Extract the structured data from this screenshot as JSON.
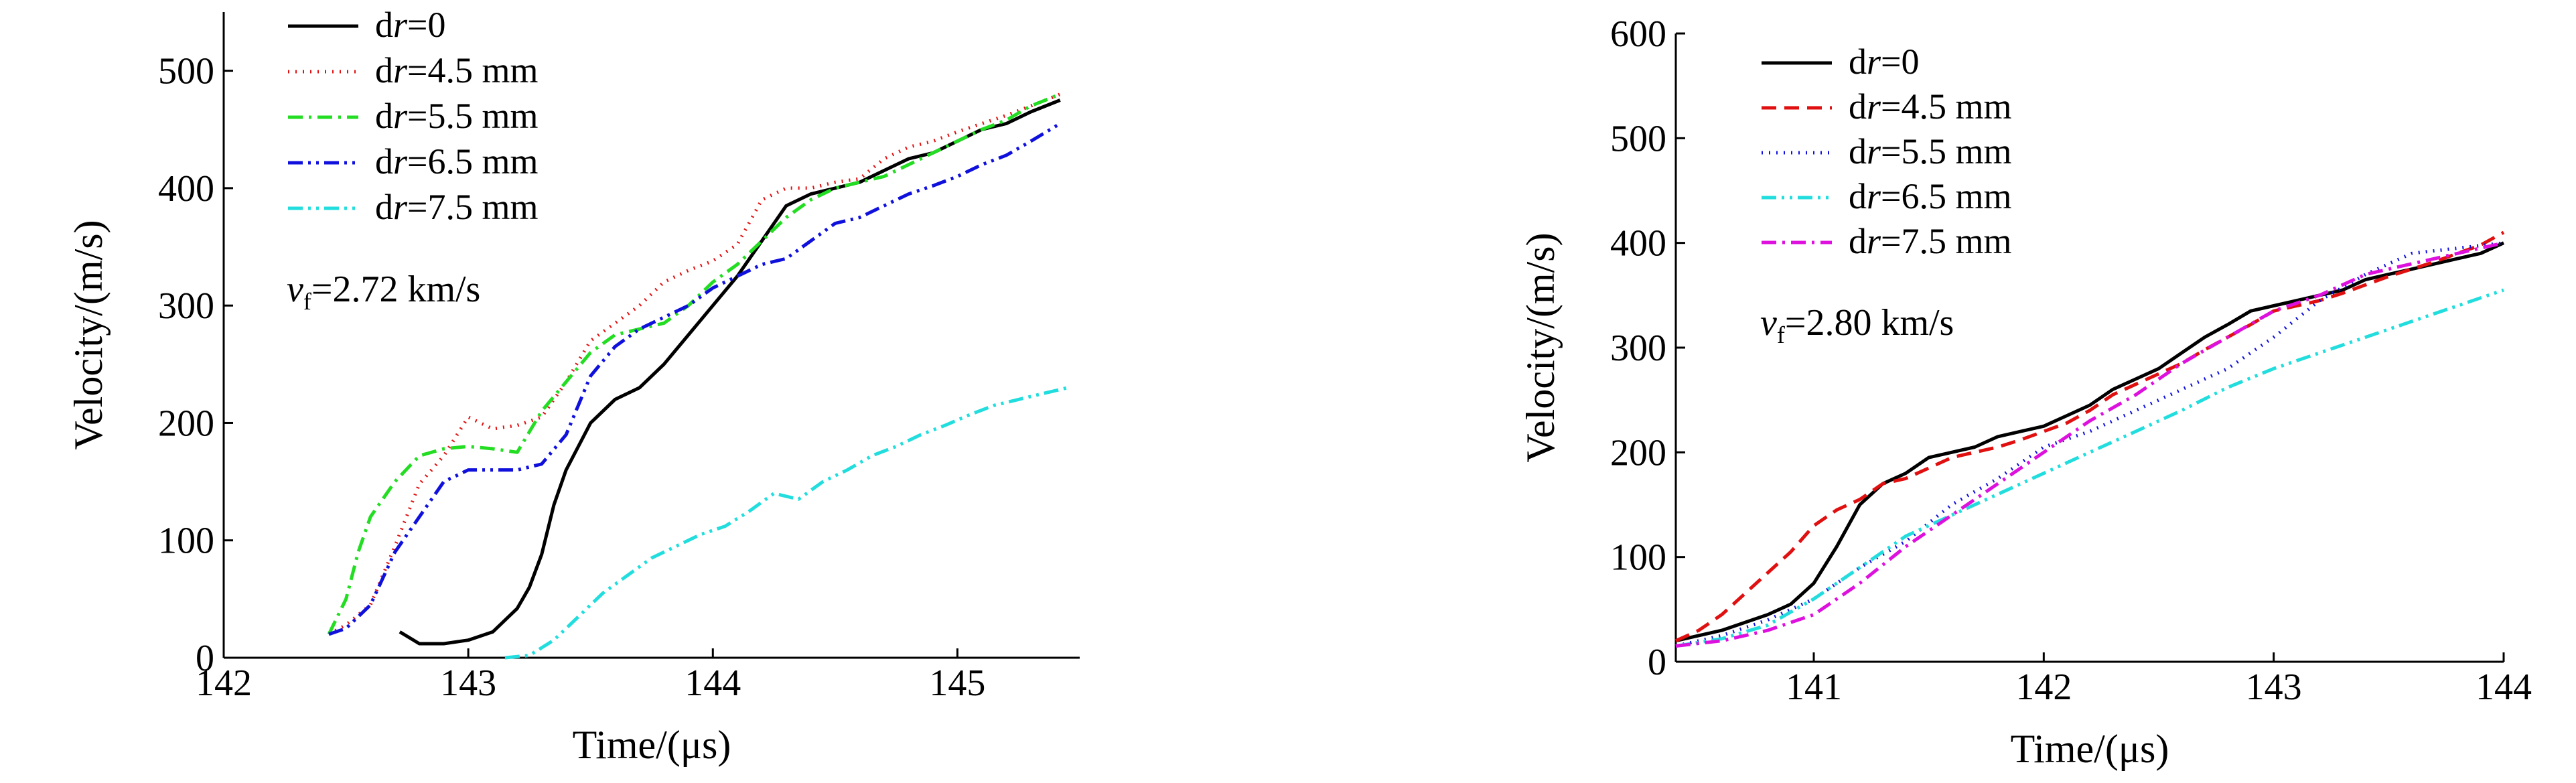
{
  "colors": {
    "black": "#000000",
    "red": "#e01010",
    "green": "#22dd22",
    "blue": "#1010dd",
    "cyan": "#22dddd",
    "magenta": "#dd10dd"
  },
  "chart_data": [
    {
      "type": "line",
      "title": "",
      "xlabel": "Time/(μs)",
      "ylabel": "Velocity/(m/s)",
      "xlim": [
        142,
        145.5
      ],
      "ylim": [
        0,
        550
      ],
      "xticks": [
        142,
        143,
        144,
        145
      ],
      "yticks": [
        0,
        100,
        200,
        300,
        400,
        500
      ],
      "grid": false,
      "legend": "top-left",
      "annotation": {
        "symbol": "v",
        "subscript": "f",
        "text": "=2.72 km/s"
      },
      "series": [
        {
          "name": "d",
          "name_var": "r",
          "name_rest": "=0",
          "color": "#000000",
          "dash": "solid",
          "x": [
            142.72,
            142.8,
            142.9,
            143.0,
            143.1,
            143.2,
            143.25,
            143.3,
            143.35,
            143.4,
            143.45,
            143.5,
            143.6,
            143.7,
            143.8,
            143.9,
            144.0,
            144.1,
            144.2,
            144.3,
            144.4,
            144.5,
            144.6,
            144.7,
            144.8,
            144.9,
            145.0,
            145.1,
            145.2,
            145.3,
            145.42
          ],
          "y": [
            22,
            12,
            12,
            15,
            22,
            42,
            60,
            88,
            130,
            160,
            180,
            200,
            220,
            230,
            250,
            275,
            300,
            325,
            355,
            385,
            395,
            400,
            405,
            415,
            425,
            430,
            440,
            450,
            455,
            465,
            475
          ]
        },
        {
          "name": "d",
          "name_var": "r",
          "name_rest": "=4.5 mm",
          "color": "#e01010",
          "dash": "dot",
          "x": [
            142.43,
            142.5,
            142.6,
            142.7,
            142.8,
            142.9,
            143.0,
            143.1,
            143.2,
            143.3,
            143.4,
            143.5,
            143.6,
            143.7,
            143.8,
            143.9,
            144.0,
            144.1,
            144.2,
            144.3,
            144.4,
            144.5,
            144.6,
            144.7,
            144.8,
            144.9,
            145.0,
            145.1,
            145.2,
            145.3,
            145.42
          ],
          "y": [
            20,
            28,
            45,
            95,
            148,
            172,
            205,
            195,
            198,
            205,
            235,
            270,
            285,
            300,
            320,
            330,
            338,
            352,
            390,
            400,
            400,
            405,
            408,
            425,
            435,
            440,
            448,
            455,
            462,
            470,
            480
          ]
        },
        {
          "name": "d",
          "name_var": "r",
          "name_rest": "=5.5 mm",
          "color": "#22dd22",
          "dash": "dashdot",
          "x": [
            142.43,
            142.5,
            142.55,
            142.6,
            142.65,
            142.7,
            142.8,
            142.9,
            143.0,
            143.1,
            143.2,
            143.3,
            143.4,
            143.5,
            143.6,
            143.7,
            143.8,
            143.9,
            144.0,
            144.1,
            144.2,
            144.3,
            144.4,
            144.5,
            144.6,
            144.7,
            144.8,
            144.9,
            145.0,
            145.1,
            145.2,
            145.3,
            145.42
          ],
          "y": [
            20,
            50,
            90,
            120,
            135,
            150,
            172,
            178,
            180,
            178,
            175,
            210,
            235,
            260,
            275,
            280,
            285,
            300,
            320,
            335,
            355,
            375,
            390,
            400,
            405,
            410,
            420,
            430,
            440,
            450,
            458,
            470,
            480
          ]
        },
        {
          "name": "d",
          "name_var": "r",
          "name_rest": "=6.5 mm",
          "color": "#1010dd",
          "dash": "dashdotdot",
          "x": [
            142.43,
            142.5,
            142.6,
            142.7,
            142.8,
            142.9,
            143.0,
            143.1,
            143.2,
            143.3,
            143.4,
            143.5,
            143.6,
            143.7,
            143.8,
            143.9,
            144.0,
            144.1,
            144.2,
            144.3,
            144.4,
            144.5,
            144.6,
            144.7,
            144.8,
            144.9,
            145.0,
            145.1,
            145.2,
            145.3,
            145.42
          ],
          "y": [
            20,
            25,
            45,
            90,
            120,
            150,
            160,
            160,
            160,
            165,
            190,
            240,
            265,
            280,
            290,
            300,
            315,
            325,
            335,
            340,
            355,
            370,
            375,
            385,
            395,
            402,
            410,
            420,
            428,
            440,
            455
          ]
        },
        {
          "name": "d",
          "name_var": "r",
          "name_rest": "=7.5 mm",
          "color": "#22dddd",
          "dash": "dashdotdot",
          "x": [
            143.15,
            143.25,
            143.35,
            143.45,
            143.55,
            143.65,
            143.75,
            143.85,
            143.95,
            144.05,
            144.15,
            144.25,
            144.35,
            144.45,
            144.55,
            144.65,
            144.75,
            144.85,
            144.95,
            145.05,
            145.15,
            145.25,
            145.35,
            145.45
          ],
          "y": [
            0,
            2,
            15,
            35,
            55,
            70,
            85,
            95,
            105,
            112,
            125,
            140,
            135,
            150,
            160,
            172,
            180,
            190,
            198,
            207,
            215,
            220,
            225,
            230
          ]
        }
      ]
    },
    {
      "type": "line",
      "title": "",
      "xlabel": "Time/(μs)",
      "ylabel": "Velocity/(m/s)",
      "xlim": [
        140.4,
        144
      ],
      "ylim": [
        0,
        600
      ],
      "xticks": [
        141,
        142,
        143,
        144
      ],
      "yticks": [
        0,
        100,
        200,
        300,
        400,
        500,
        600
      ],
      "grid": false,
      "legend": "top-left",
      "annotation": {
        "symbol": "v",
        "subscript": "f",
        "text": "=2.80 km/s"
      },
      "series": [
        {
          "name": "d",
          "name_var": "r",
          "name_rest": "=0",
          "color": "#000000",
          "dash": "solid",
          "x": [
            140.4,
            140.6,
            140.8,
            140.9,
            141.0,
            141.1,
            141.2,
            141.3,
            141.4,
            141.5,
            141.6,
            141.7,
            141.8,
            141.9,
            142.0,
            142.1,
            142.2,
            142.3,
            142.4,
            142.5,
            142.6,
            142.7,
            142.8,
            142.9,
            143.0,
            143.1,
            143.2,
            143.3,
            143.4,
            143.5,
            143.6,
            143.7,
            143.8,
            143.9,
            144.0
          ],
          "y": [
            20,
            30,
            45,
            55,
            75,
            110,
            150,
            170,
            180,
            195,
            200,
            205,
            215,
            220,
            225,
            235,
            245,
            260,
            270,
            280,
            295,
            310,
            322,
            335,
            340,
            345,
            350,
            355,
            365,
            370,
            375,
            380,
            385,
            390,
            400
          ]
        },
        {
          "name": "d",
          "name_var": "r",
          "name_rest": "=4.5 mm",
          "color": "#e01010",
          "dash": "dash",
          "x": [
            140.4,
            140.5,
            140.6,
            140.7,
            140.8,
            140.9,
            141.0,
            141.1,
            141.2,
            141.3,
            141.4,
            141.5,
            141.6,
            141.7,
            141.8,
            141.9,
            142.0,
            142.1,
            142.2,
            142.3,
            142.4,
            142.5,
            142.6,
            142.7,
            142.8,
            142.9,
            143.0,
            143.1,
            143.2,
            143.3,
            143.4,
            143.5,
            143.6,
            143.7,
            143.8,
            143.9,
            144.0
          ],
          "y": [
            20,
            30,
            45,
            65,
            85,
            105,
            130,
            145,
            155,
            170,
            175,
            185,
            195,
            200,
            205,
            212,
            220,
            228,
            240,
            255,
            265,
            275,
            285,
            298,
            310,
            322,
            335,
            340,
            345,
            352,
            360,
            368,
            375,
            382,
            390,
            398,
            410
          ]
        },
        {
          "name": "d",
          "name_var": "r",
          "name_rest": "=5.5 mm",
          "color": "#1010dd",
          "dash": "dot",
          "x": [
            140.4,
            140.6,
            140.8,
            141.0,
            141.2,
            141.4,
            141.6,
            141.8,
            142.0,
            142.2,
            142.4,
            142.6,
            142.8,
            143.0,
            143.2,
            143.4,
            143.6,
            143.8,
            144.0
          ],
          "y": [
            15,
            25,
            40,
            60,
            90,
            115,
            150,
            175,
            205,
            220,
            240,
            260,
            280,
            310,
            345,
            370,
            390,
            395,
            400
          ]
        },
        {
          "name": "d",
          "name_var": "r",
          "name_rest": "=6.5 mm",
          "color": "#22dddd",
          "dash": "dashdotdot",
          "x": [
            140.4,
            140.6,
            140.8,
            141.0,
            141.2,
            141.4,
            141.6,
            141.8,
            142.0,
            142.2,
            142.4,
            142.6,
            142.8,
            143.0,
            143.2,
            143.4,
            143.6,
            143.8,
            144.0
          ],
          "y": [
            15,
            22,
            35,
            60,
            90,
            120,
            140,
            160,
            180,
            200,
            220,
            240,
            262,
            280,
            295,
            310,
            325,
            340,
            355
          ]
        },
        {
          "name": "d",
          "name_var": "r",
          "name_rest": "=7.5 mm",
          "color": "#dd10dd",
          "dash": "dashdot",
          "x": [
            140.4,
            140.6,
            140.8,
            141.0,
            141.2,
            141.4,
            141.6,
            141.8,
            142.0,
            142.2,
            142.4,
            142.6,
            142.8,
            143.0,
            143.2,
            143.4,
            143.6,
            143.8,
            144.0
          ],
          "y": [
            15,
            20,
            30,
            45,
            75,
            110,
            140,
            170,
            200,
            230,
            255,
            285,
            310,
            335,
            350,
            370,
            380,
            390,
            400
          ]
        }
      ]
    }
  ]
}
